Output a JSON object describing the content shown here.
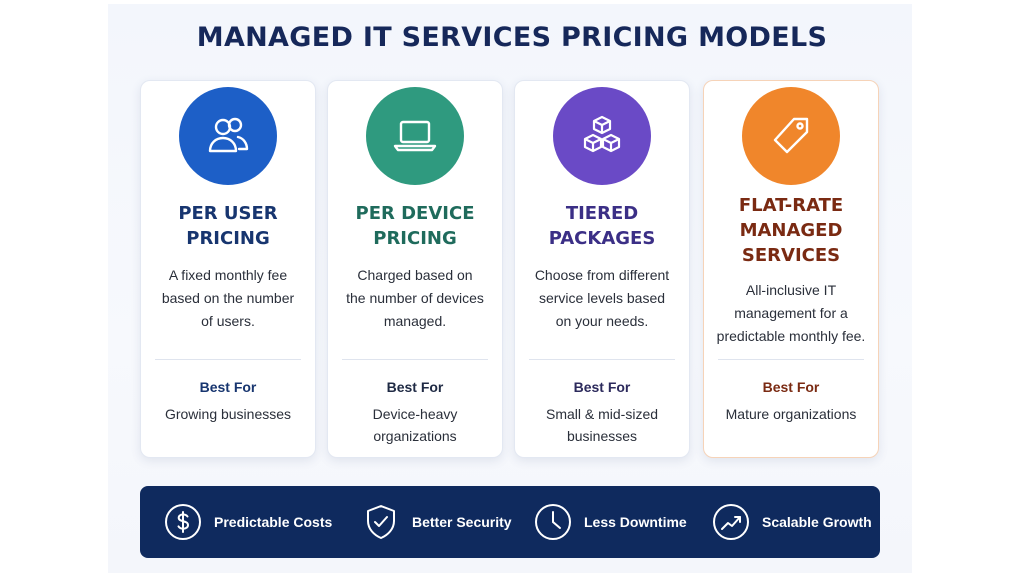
{
  "title": "MANAGED IT SERVICES PRICING MODELS",
  "best_for_label": "Best For",
  "cards": [
    {
      "icon": "users-icon",
      "color": "#1d5fc7",
      "title_color": "#17356f",
      "title_lines": [
        "PER USER",
        "PRICING"
      ],
      "desc_lines": [
        "A fixed monthly fee",
        "based on the number",
        "of users."
      ],
      "best_for_lines": [
        "Growing businesses"
      ]
    },
    {
      "icon": "laptop-icon",
      "color": "#2f9a7f",
      "title_color": "#1f6b5c",
      "title_lines": [
        "PER DEVICE",
        "PRICING"
      ],
      "desc_lines": [
        "Charged based on",
        "the number of devices",
        "managed."
      ],
      "best_for_lines": [
        "Device-heavy",
        "organizations"
      ]
    },
    {
      "icon": "cubes-icon",
      "color": "#6a4ac6",
      "title_color": "#3b2f86",
      "title_lines": [
        "TIERED",
        "PACKAGES"
      ],
      "desc_lines": [
        "Choose from different",
        "service levels based",
        "on your needs."
      ],
      "best_for_lines": [
        "Small & mid-sized",
        "businesses"
      ]
    },
    {
      "icon": "price-tag-icon",
      "color": "#f0862b",
      "title_color": "#7a2a12",
      "title_lines": [
        "FLAT-RATE",
        "MANAGED",
        "SERVICES"
      ],
      "desc_lines": [
        "All-inclusive IT",
        "management for a",
        "predictable monthly fee."
      ],
      "best_for_lines": [
        "Mature organizations"
      ]
    }
  ],
  "benefits": [
    {
      "icon": "dollar-icon",
      "label": "Predictable Costs"
    },
    {
      "icon": "shield-check-icon",
      "label": "Better Security"
    },
    {
      "icon": "clock-icon",
      "label": "Less Downtime"
    },
    {
      "icon": "growth-chart-icon",
      "label": "Scalable Growth"
    }
  ]
}
